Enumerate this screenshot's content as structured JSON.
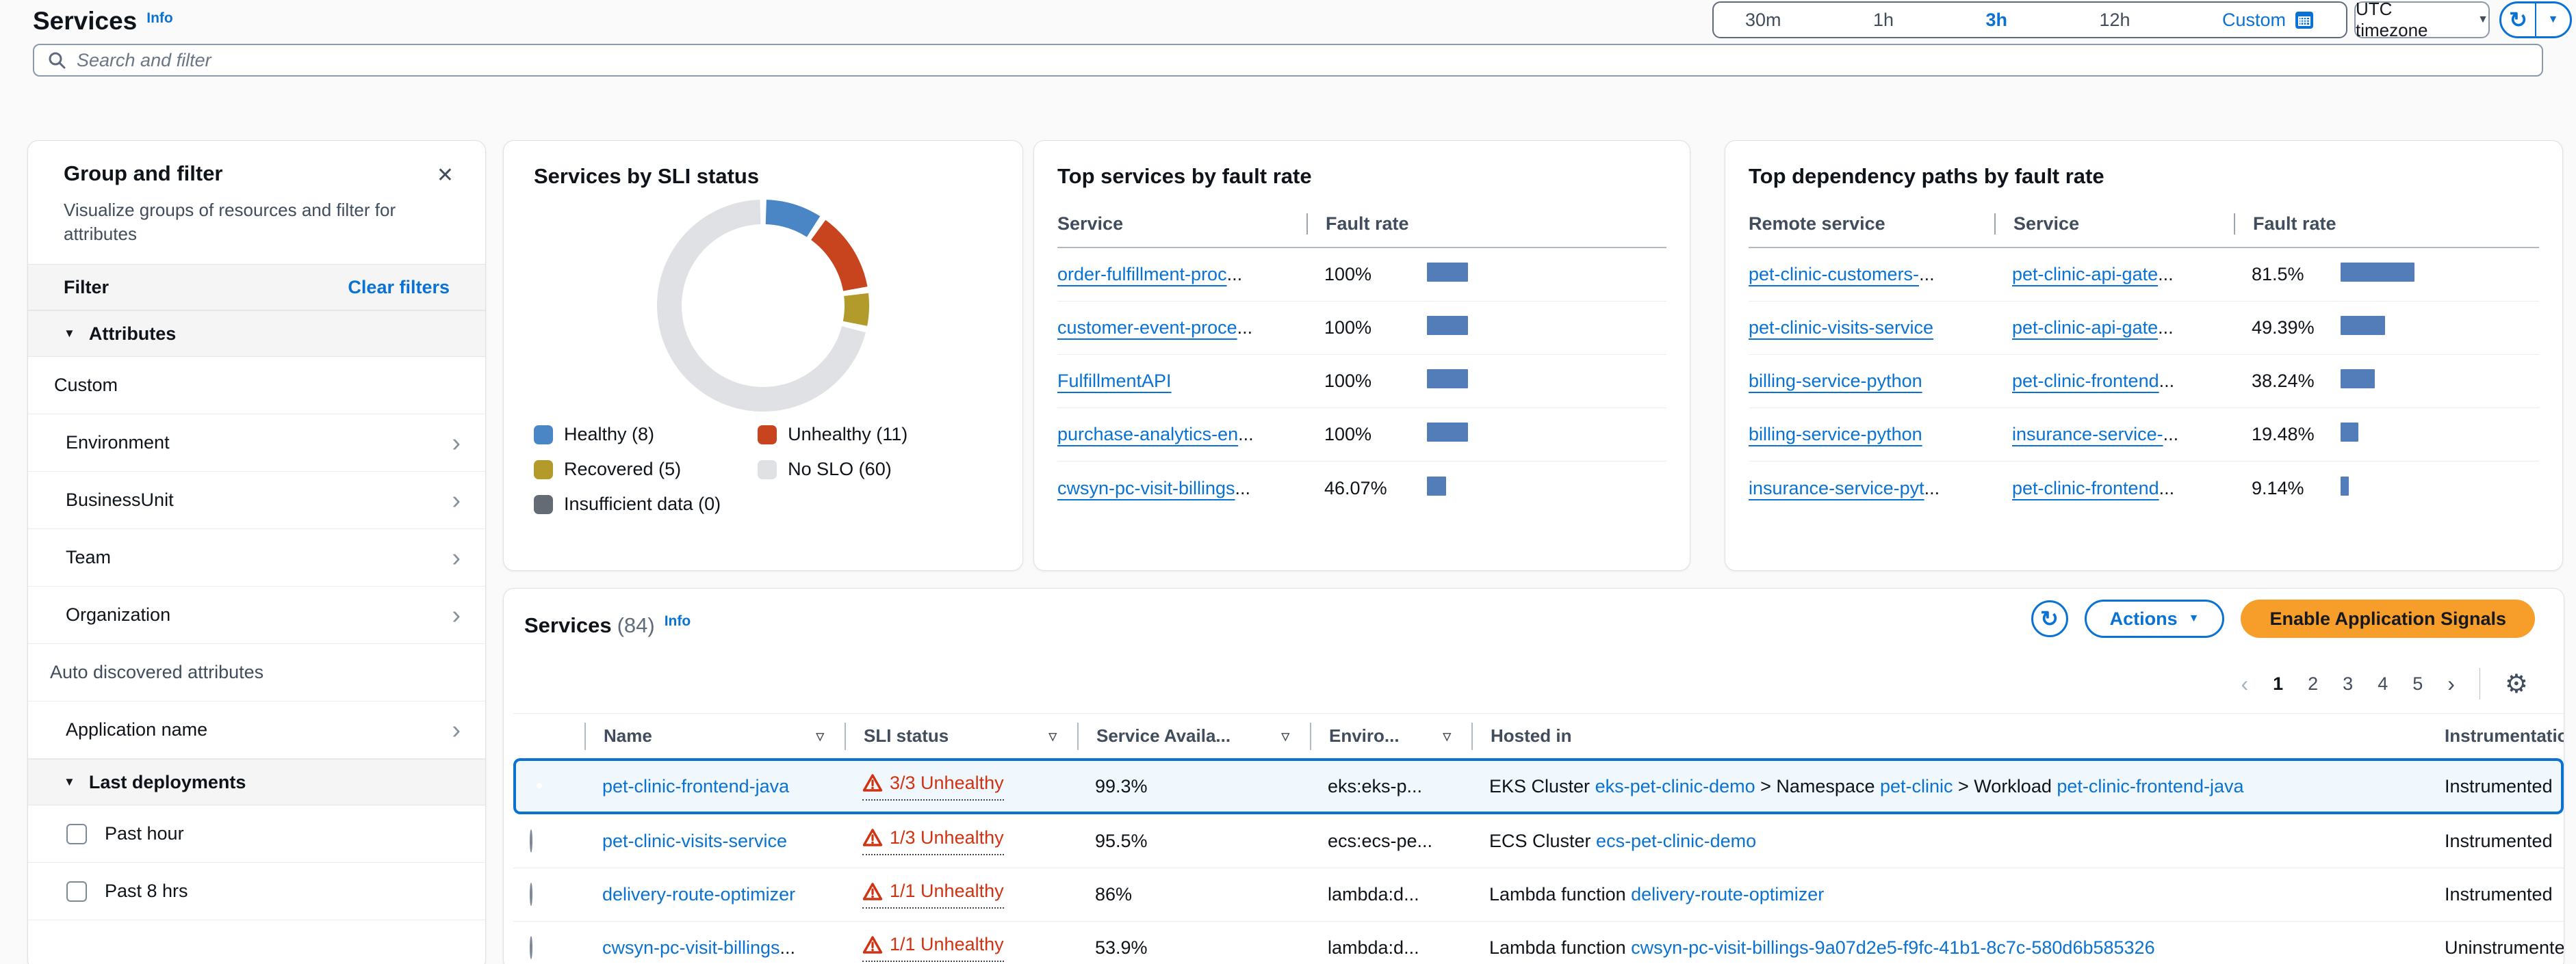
{
  "header": {
    "title": "Services",
    "info": "Info",
    "search_placeholder": "Search and filter",
    "time_ranges": [
      {
        "label": "30m",
        "selected": false,
        "accent": false
      },
      {
        "label": "1h",
        "selected": false,
        "accent": false
      },
      {
        "label": "3h",
        "selected": true,
        "accent": false
      },
      {
        "label": "12h",
        "selected": false,
        "accent": false
      },
      {
        "label": "Custom",
        "selected": false,
        "accent": true,
        "icon": "calendar-icon"
      }
    ],
    "timezone": "UTC timezone"
  },
  "sidebar": {
    "title": "Group and filter",
    "description": "Visualize groups of resources and filter for attributes",
    "filter_label": "Filter",
    "clear_filters": "Clear filters",
    "items": [
      {
        "type": "section",
        "label": "Attributes"
      },
      {
        "type": "plain",
        "label": "Custom"
      },
      {
        "type": "nav",
        "label": "Environment"
      },
      {
        "type": "nav",
        "label": "BusinessUnit"
      },
      {
        "type": "nav",
        "label": "Team"
      },
      {
        "type": "nav",
        "label": "Organization"
      },
      {
        "type": "group-label",
        "label": "Auto discovered attributes"
      },
      {
        "type": "nav",
        "label": "Application name"
      },
      {
        "type": "section",
        "label": "Last deployments"
      },
      {
        "type": "checkbox",
        "label": "Past hour",
        "checked": false
      },
      {
        "type": "checkbox",
        "label": "Past 8 hrs",
        "checked": false
      }
    ]
  },
  "sli_card": {
    "title": "Services by SLI status",
    "legend": [
      {
        "label": "Healthy (8)",
        "color": "#4a86c5"
      },
      {
        "label": "Unhealthy (11)",
        "color": "#c8441f"
      },
      {
        "label": "Recovered (5)",
        "color": "#b29a2b"
      },
      {
        "label": "No SLO (60)",
        "color": "#e0e1e5"
      },
      {
        "label": "Insufficient data (0)",
        "color": "#656b74"
      }
    ]
  },
  "top_services_card": {
    "title": "Top services by fault rate",
    "columns": [
      "Service",
      "Fault rate"
    ],
    "rows": [
      {
        "service": "order-fulfillment-proc",
        "truncated": true,
        "rate_label": "100%",
        "rate": 100
      },
      {
        "service": "customer-event-proce",
        "truncated": true,
        "rate_label": "100%",
        "rate": 100
      },
      {
        "service": "FulfillmentAPI",
        "truncated": false,
        "rate_label": "100%",
        "rate": 100
      },
      {
        "service": "purchase-analytics-en",
        "truncated": true,
        "rate_label": "100%",
        "rate": 100
      },
      {
        "service": "cwsyn-pc-visit-billings",
        "truncated": true,
        "rate_label": "46.07%",
        "rate": 46.07
      }
    ]
  },
  "top_paths_card": {
    "title": "Top dependency paths by fault rate",
    "columns": [
      "Remote service",
      "Service",
      "Fault rate"
    ],
    "rows": [
      {
        "remote": "pet-clinic-customers-",
        "remote_trunc": true,
        "service": "pet-clinic-api-gate",
        "service_trunc": true,
        "rate_label": "81.5%",
        "rate": 81.5
      },
      {
        "remote": "pet-clinic-visits-service",
        "remote_trunc": false,
        "service": "pet-clinic-api-gate",
        "service_trunc": true,
        "rate_label": "49.39%",
        "rate": 49.39
      },
      {
        "remote": "billing-service-python",
        "remote_trunc": false,
        "service": "pet-clinic-frontend",
        "service_trunc": true,
        "rate_label": "38.24%",
        "rate": 38.24
      },
      {
        "remote": "billing-service-python",
        "remote_trunc": false,
        "service": "insurance-service-",
        "service_trunc": true,
        "rate_label": "19.48%",
        "rate": 19.48
      },
      {
        "remote": "insurance-service-pyt",
        "remote_trunc": true,
        "service": "pet-clinic-frontend",
        "service_trunc": true,
        "rate_label": "9.14%",
        "rate": 9.14
      }
    ]
  },
  "services_table": {
    "title": "Services",
    "count": "(84)",
    "info": "Info",
    "actions_label": "Actions",
    "primary_label": "Enable Application Signals",
    "pages": [
      "1",
      "2",
      "3",
      "4",
      "5"
    ],
    "current_page": "1",
    "columns": [
      {
        "label": "Name",
        "sortable": true
      },
      {
        "label": "SLI status",
        "sortable": true
      },
      {
        "label": "Service Availa...",
        "sortable": true
      },
      {
        "label": "Enviro...",
        "sortable": true
      },
      {
        "label": "Hosted in",
        "sortable": false
      },
      {
        "label": "Instrumentation",
        "sortable": false
      }
    ],
    "rows": [
      {
        "selected": true,
        "name": "pet-clinic-frontend-java",
        "name_trunc": false,
        "sli": "3/3 Unhealthy",
        "availability": "99.3%",
        "environment": "eks:eks-p...",
        "hosted": [
          {
            "text": "EKS Cluster "
          },
          {
            "link": "eks-pet-clinic-demo",
            "underline": true
          },
          {
            "text": " > Namespace "
          },
          {
            "link": "pet-clinic",
            "underline": true
          },
          {
            "text": " > Workload "
          },
          {
            "link": "pet-clinic-frontend-java",
            "underline": true
          }
        ],
        "instrumentation": "Instrumented"
      },
      {
        "selected": false,
        "name": "pet-clinic-visits-service",
        "name_trunc": false,
        "sli": "1/3 Unhealthy",
        "availability": "95.5%",
        "environment": "ecs:ecs-pe...",
        "hosted": [
          {
            "text": "ECS Cluster "
          },
          {
            "link": "ecs-pet-clinic-demo",
            "underline": true
          }
        ],
        "instrumentation": "Instrumented"
      },
      {
        "selected": false,
        "name": "delivery-route-optimizer",
        "name_trunc": false,
        "sli": "1/1 Unhealthy",
        "availability": "86%",
        "environment": "lambda:d...",
        "hosted": [
          {
            "text": "Lambda function "
          },
          {
            "link": "delivery-route-optimizer",
            "underline": false
          }
        ],
        "instrumentation": "Instrumented"
      },
      {
        "selected": false,
        "name": "cwsyn-pc-visit-billings",
        "name_trunc": true,
        "sli": "1/1 Unhealthy",
        "availability": "53.9%",
        "environment": "lambda:d...",
        "hosted": [
          {
            "text": "Lambda function "
          },
          {
            "link": "cwsyn-pc-visit-billings-9a07d2e5-f9fc-41b1-8c7c-580d6b585326",
            "underline": false
          }
        ],
        "instrumentation": "Uninstrumented"
      }
    ]
  },
  "status_colors": {
    "unhealthy": "#d13212",
    "link": "#0972d3",
    "bar": "#527db8",
    "primary_button": "#f79d2a"
  },
  "chart_data": [
    {
      "type": "pie",
      "donut": true,
      "title": "Services by SLI status",
      "labels": [
        "Healthy",
        "Unhealthy",
        "Recovered",
        "No SLO",
        "Insufficient data"
      ],
      "values": [
        8,
        11,
        5,
        60,
        0
      ],
      "colors": [
        "#4a86c5",
        "#c8441f",
        "#b29a2b",
        "#e0e1e5",
        "#656b74"
      ],
      "legend_position": "bottom-left"
    },
    {
      "type": "bar",
      "orientation": "horizontal",
      "title": "Top services by fault rate",
      "categories": [
        "order-fulfillment-proc...",
        "customer-event-proce...",
        "FulfillmentAPI",
        "purchase-analytics-en...",
        "cwsyn-pc-visit-billings..."
      ],
      "values": [
        100,
        100,
        100,
        100,
        46.07
      ],
      "unit": "%",
      "xlim": [
        0,
        100
      ]
    },
    {
      "type": "bar",
      "orientation": "horizontal",
      "title": "Top dependency paths by fault rate",
      "categories": [
        "pet-clinic-customers-... > pet-clinic-api-gate...",
        "pet-clinic-visits-service > pet-clinic-api-gate...",
        "billing-service-python > pet-clinic-frontend...",
        "billing-service-python > insurance-service-...",
        "insurance-service-pyt... > pet-clinic-frontend..."
      ],
      "values": [
        81.5,
        49.39,
        38.24,
        19.48,
        9.14
      ],
      "unit": "%",
      "xlim": [
        0,
        100
      ]
    }
  ]
}
